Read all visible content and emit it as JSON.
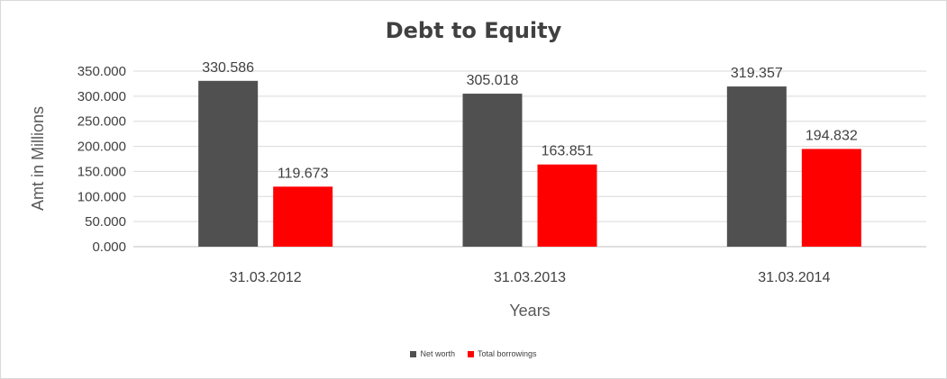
{
  "chart_data": {
    "type": "bar",
    "title": "Debt to Equity",
    "xlabel": "Years",
    "ylabel": "Amt in Millions",
    "categories": [
      "31.03.2012",
      "31.03.2013",
      "31.03.2014"
    ],
    "series": [
      {
        "name": "Net worth",
        "values": [
          330.586,
          305.018,
          319.357
        ],
        "color": "#505050"
      },
      {
        "name": "Total borrowings",
        "values": [
          119.673,
          163.851,
          194.832
        ],
        "color": "#ff0000"
      }
    ],
    "ylim": [
      0,
      350
    ],
    "yticks": [
      "0.000",
      "50.000",
      "100.000",
      "150.000",
      "200.000",
      "250.000",
      "300.000",
      "350.000"
    ],
    "data_labels": [
      [
        "330.586",
        "305.018",
        "319.357"
      ],
      [
        "119.673",
        "163.851",
        "194.832"
      ]
    ],
    "grid": true,
    "legend_position": "bottom"
  }
}
